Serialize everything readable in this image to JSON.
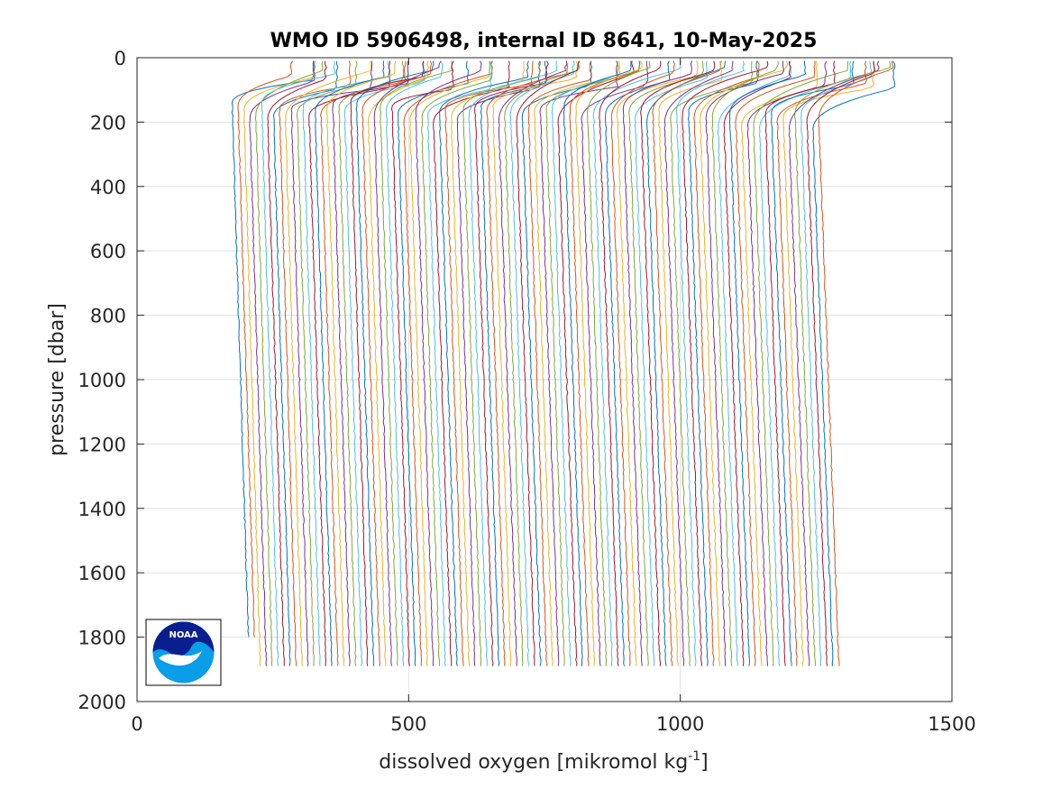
{
  "chart_data": {
    "type": "line",
    "title": "WMO ID 5906498, internal ID 8641, 10-May-2025",
    "xlabel_main": "dissolved oxygen [mikromol kg",
    "xlabel_sup": "-1",
    "xlabel_end": "]",
    "ylabel": "pressure [dbar]",
    "xlim": [
      0,
      1500
    ],
    "ylim": [
      0,
      2000
    ],
    "y_reversed": true,
    "grid": true,
    "x_ticks": [
      "0",
      "500",
      "1000",
      "1500"
    ],
    "y_ticks": [
      "0",
      "200",
      "400",
      "600",
      "800",
      "1000",
      "1200",
      "1400",
      "1600",
      "1800",
      "2000"
    ],
    "profile_count": 100,
    "profile_offset_step": 9.5,
    "first_profile": {
      "surface_o2": 300,
      "min_o2": 175,
      "min_depth": 160,
      "deep_o2": 205,
      "max_pressure": 1800
    },
    "last_profile": {
      "surface_o2": 1405,
      "min_o2": 1255,
      "min_depth": 200,
      "deep_o2": 1292,
      "max_pressure": 1895
    },
    "series_colors": [
      "#0072BD",
      "#D95319",
      "#EDB120",
      "#7E2F8E",
      "#77AC30",
      "#4DBEEE",
      "#A2142F"
    ]
  },
  "logo": {
    "text": "NOAA",
    "dark_color": "#0a1f8f",
    "light_color": "#0a9de8"
  }
}
